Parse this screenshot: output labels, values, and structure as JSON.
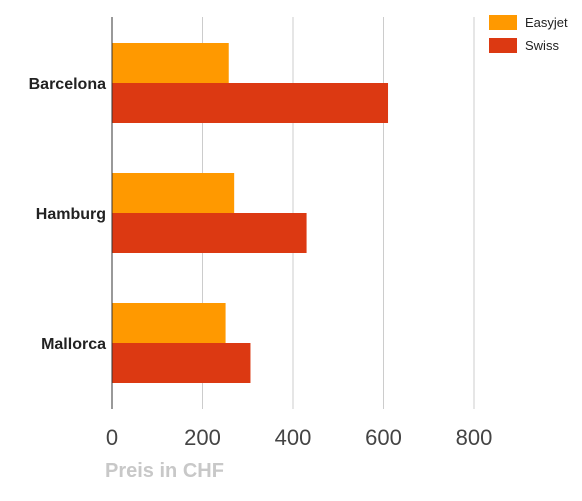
{
  "chart_data": {
    "type": "bar",
    "orientation": "horizontal",
    "categories": [
      "Barcelona",
      "Hamburg",
      "Mallorca"
    ],
    "series": [
      {
        "name": "Easyjet",
        "color": "#ff9900",
        "values": [
          258,
          270,
          251
        ]
      },
      {
        "name": "Swiss",
        "color": "#dc3912",
        "values": [
          610,
          430,
          306
        ]
      }
    ],
    "xlabel": "Preis in CHF",
    "xlim": [
      0,
      800
    ],
    "x_ticks": [
      "0",
      "200",
      "400",
      "600",
      "800"
    ],
    "grid": true,
    "legend_position": "top-right"
  }
}
